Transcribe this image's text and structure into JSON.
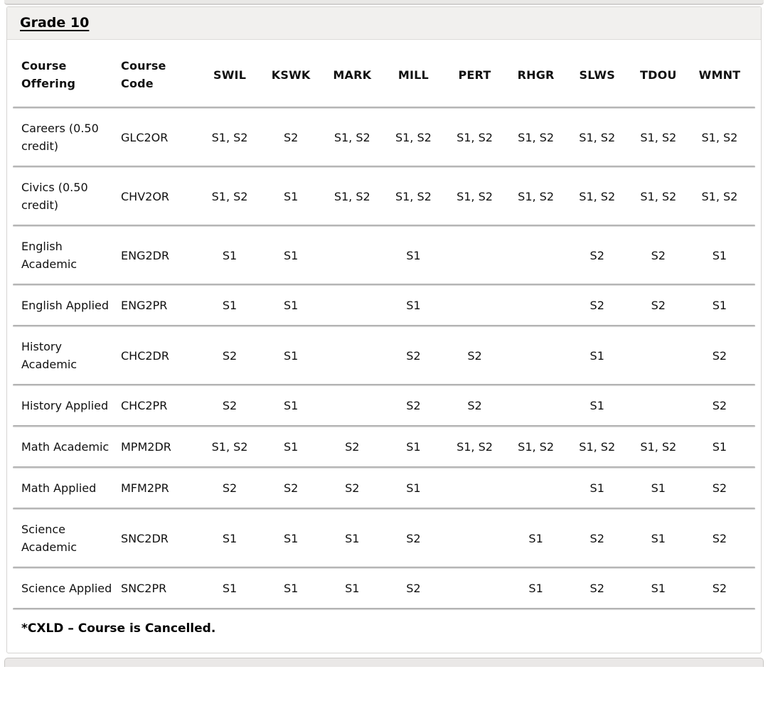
{
  "section": {
    "title": "Grade 10",
    "footnote": "*CXLD – Course is Cancelled."
  },
  "table": {
    "columns": [
      "Course Offering",
      "Course Code",
      "SWIL",
      "KSWK",
      "MARK",
      "MILL",
      "PERT",
      "RHGR",
      "SLWS",
      "TDOU",
      "WMNT"
    ],
    "rows": [
      {
        "offering": "Careers (0.50 credit)",
        "code": "GLC2OR",
        "schools": [
          "S1, S2",
          "S2",
          "S1, S2",
          "S1, S2",
          "S1, S2",
          "S1, S2",
          "S1, S2",
          "S1, S2",
          "S1, S2"
        ]
      },
      {
        "offering": "Civics (0.50 credit)",
        "code": "CHV2OR",
        "schools": [
          "S1, S2",
          "S1",
          "S1, S2",
          "S1, S2",
          "S1, S2",
          "S1, S2",
          "S1, S2",
          "S1, S2",
          "S1, S2"
        ]
      },
      {
        "offering": "English Academic",
        "code": "ENG2DR",
        "schools": [
          "S1",
          "S1",
          "",
          "S1",
          "",
          "",
          "S2",
          "S2",
          "S1"
        ]
      },
      {
        "offering": "English Applied",
        "code": "ENG2PR",
        "schools": [
          "S1",
          "S1",
          "",
          "S1",
          "",
          "",
          "S2",
          "S2",
          "S1"
        ]
      },
      {
        "offering": "History Academic",
        "code": "CHC2DR",
        "schools": [
          "S2",
          "S1",
          "",
          "S2",
          "S2",
          "",
          "S1",
          "",
          "S2"
        ]
      },
      {
        "offering": "History Applied",
        "code": "CHC2PR",
        "schools": [
          "S2",
          "S1",
          "",
          "S2",
          "S2",
          "",
          "S1",
          "",
          "S2"
        ]
      },
      {
        "offering": "Math Academic",
        "code": "MPM2DR",
        "schools": [
          "S1, S2",
          "S1",
          "S2",
          "S1",
          "S1, S2",
          "S1, S2",
          "S1, S2",
          "S1, S2",
          "S1"
        ]
      },
      {
        "offering": "Math Applied",
        "code": "MFM2PR",
        "schools": [
          "S2",
          "S2",
          "S2",
          "S1",
          "",
          "",
          "S1",
          "S1",
          "S2"
        ]
      },
      {
        "offering": "Science Academic",
        "code": "SNC2DR",
        "schools": [
          "S1",
          "S1",
          "S1",
          "S2",
          "",
          "S1",
          "S2",
          "S1",
          "S2"
        ]
      },
      {
        "offering": "Science Applied",
        "code": "SNC2PR",
        "schools": [
          "S1",
          "S1",
          "S1",
          "S2",
          "",
          "S1",
          "S2",
          "S1",
          "S2"
        ]
      }
    ]
  },
  "colors": {
    "panel_header_bg": "#f1f0ee",
    "panel_border": "#d6d4d2",
    "divider_dark": "#9c9c9c",
    "divider_light": "#e4e4e4",
    "text": "#111111"
  }
}
